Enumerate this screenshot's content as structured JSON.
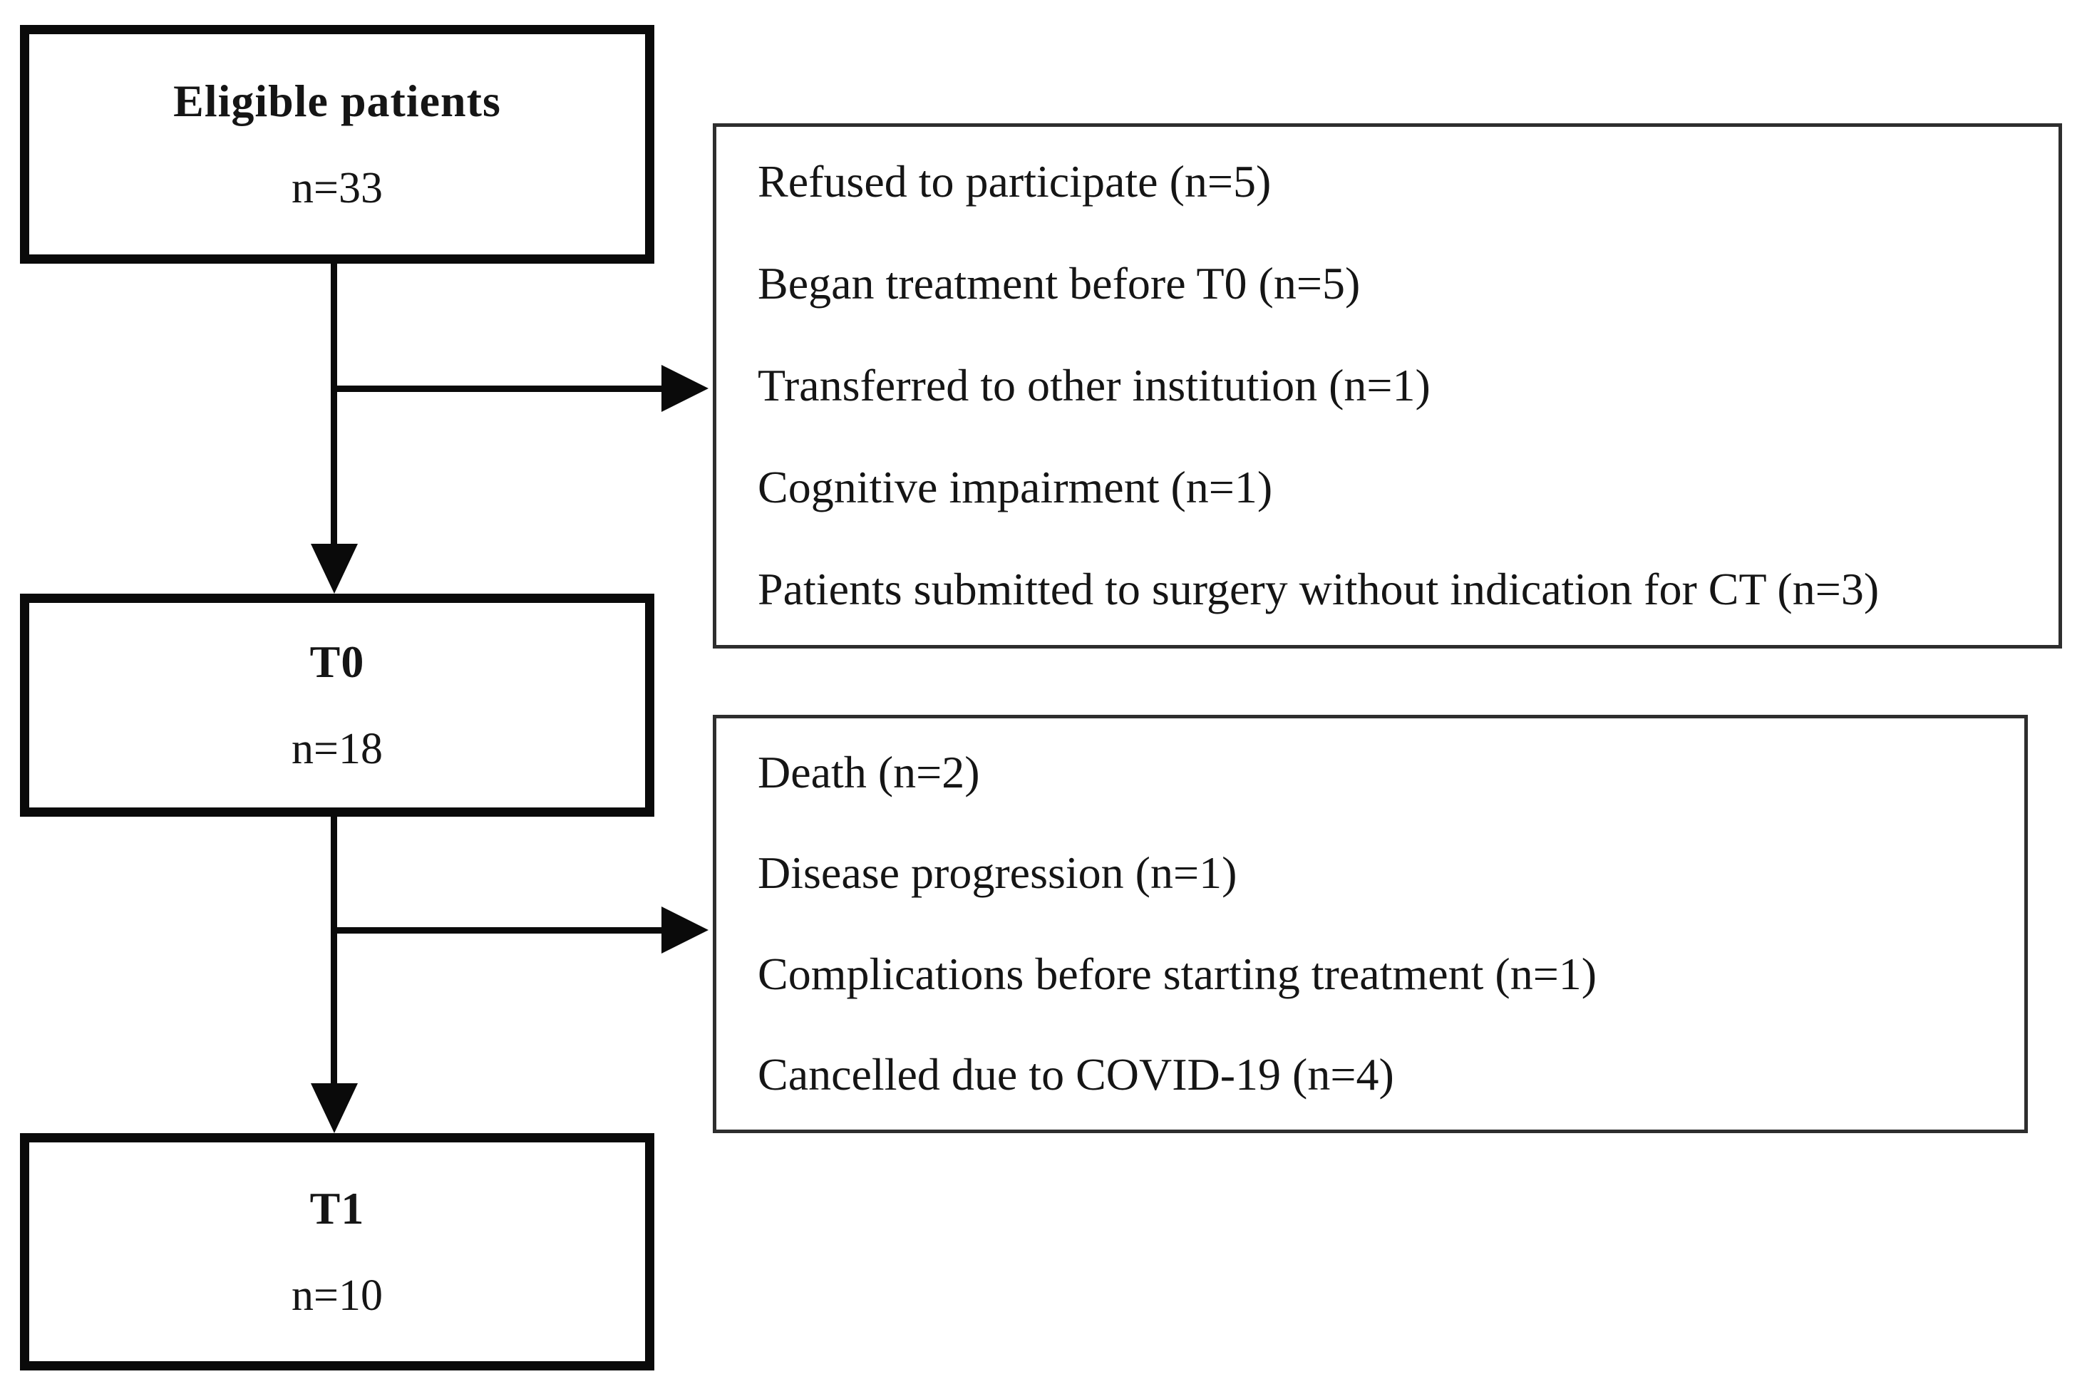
{
  "figure": {
    "type": "patient-flow-diagram",
    "background": "#ffffff",
    "colors": {
      "flow_box_border": "#0a0a0a",
      "side_box_border": "#2e2e2e",
      "text": "#151515",
      "arrow": "#0a0a0a"
    },
    "flow_boxes": [
      {
        "title": "Eligible patients",
        "count": "n=33"
      },
      {
        "title": "T0",
        "count": "n=18"
      },
      {
        "title": "T1",
        "count": "n=10"
      }
    ],
    "exclusion_boxes": [
      {
        "items": [
          "Refused to participate (n=5)",
          "Began treatment before T0 (n=5)",
          "Transferred to other institution (n=1)",
          "Cognitive impairment (n=1)",
          "Patients submitted to surgery without indication for CT (n=3)"
        ]
      },
      {
        "items": [
          "Death (n=2)",
          "Disease progression (n=1)",
          "Complications before starting treatment (n=1)",
          "Cancelled due to COVID-19 (n=4)"
        ]
      }
    ]
  }
}
